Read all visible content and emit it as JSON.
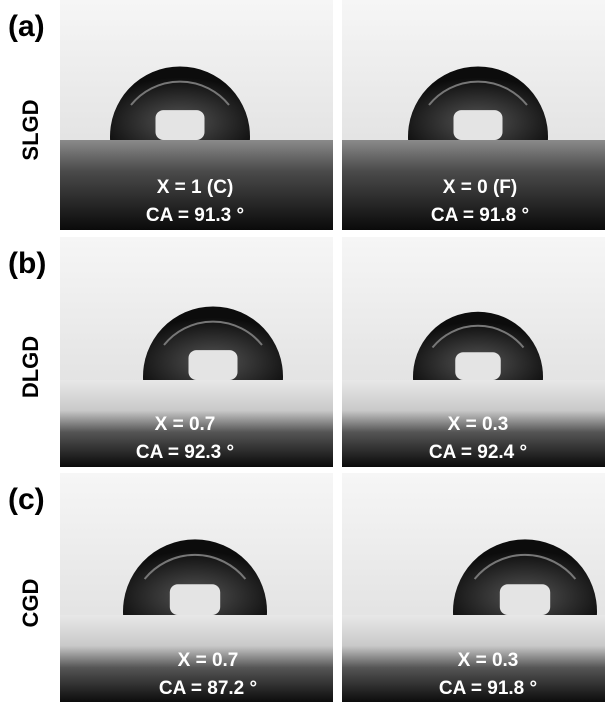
{
  "rows": [
    {
      "label": "(a)",
      "row_label": "SLGD",
      "images": [
        {
          "x_label": "X = 1 (C)",
          "ca_label": "CA = 91.3 °"
        },
        {
          "x_label": "X = 0 (F)",
          "ca_label": "CA = 91.8 °"
        }
      ]
    },
    {
      "label": "(b)",
      "row_label": "DLGD",
      "images": [
        {
          "x_label": "X = 0.7",
          "ca_label": "CA = 92.3 °"
        },
        {
          "x_label": "X = 0.3",
          "ca_label": "CA = 92.4 °"
        }
      ]
    },
    {
      "label": "(c)",
      "row_label": "CGD",
      "images": [
        {
          "x_label": "X = 0.7",
          "ca_label": "CA = 87.2 °"
        },
        {
          "x_label": "X = 0.3",
          "ca_label": "CA = 91.8 °"
        }
      ]
    }
  ]
}
